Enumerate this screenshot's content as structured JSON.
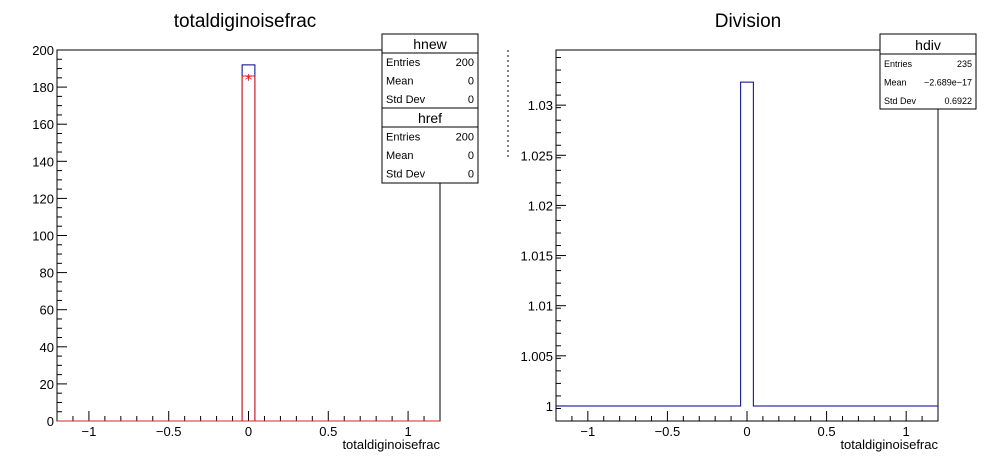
{
  "chart_data": [
    {
      "type": "bar",
      "title": "totaldiginoisefrac",
      "xlabel": "totaldiginoisefrac",
      "xlim": [
        -1.2,
        1.2
      ],
      "ylim": [
        0,
        200
      ],
      "x_ticks": [
        -1,
        -0.5,
        0,
        0.5,
        1
      ],
      "x_tick_labels": [
        "−1",
        "−0.5",
        "0",
        "0.5",
        "1"
      ],
      "y_ticks": [
        0,
        20,
        40,
        60,
        80,
        100,
        120,
        140,
        160,
        180,
        200
      ],
      "y_tick_labels": [
        "0",
        "20",
        "40",
        "60",
        "80",
        "100",
        "120",
        "140",
        "160",
        "180",
        "200"
      ],
      "series": [
        {
          "name": "hnew",
          "color": "#00008b",
          "bins": [
            {
              "x0": -0.04,
              "x1": 0.04,
              "value": 192
            }
          ],
          "marker": null
        },
        {
          "name": "href",
          "color": "#e02020",
          "bins": [
            {
              "x0": -0.04,
              "x1": 0.04,
              "value": 186
            }
          ],
          "marker": {
            "x": 0,
            "y": 186,
            "symbol": "*"
          }
        }
      ],
      "stats": [
        {
          "title": "hnew",
          "rows": [
            {
              "label": "Entries",
              "value": "200"
            },
            {
              "label": "Mean",
              "value": "0"
            },
            {
              "label": "Std Dev",
              "value": "0"
            }
          ]
        },
        {
          "title": "href",
          "rows": [
            {
              "label": "Entries",
              "value": "200"
            },
            {
              "label": "Mean",
              "value": "0"
            },
            {
              "label": "Std Dev",
              "value": "0"
            }
          ]
        }
      ]
    },
    {
      "type": "bar",
      "title": "Division",
      "xlabel": "totaldiginoisefrac",
      "xlim": [
        -1.2,
        1.2
      ],
      "ylim": [
        0.9985,
        1.0355
      ],
      "x_ticks": [
        -1,
        -0.5,
        0,
        0.5,
        1
      ],
      "x_tick_labels": [
        "−1",
        "−0.5",
        "0",
        "0.5",
        "1"
      ],
      "y_ticks": [
        1,
        1.005,
        1.01,
        1.015,
        1.02,
        1.025,
        1.03
      ],
      "y_tick_labels": [
        "1",
        "1.005",
        "1.01",
        "1.015",
        "1.02",
        "1.025",
        "1.03"
      ],
      "series": [
        {
          "name": "hdiv",
          "color": "#00008b",
          "baseline": 1,
          "bins": [
            {
              "x0": -1.2,
              "x1": -0.04,
              "value": 1
            },
            {
              "x0": -0.04,
              "x1": 0.04,
              "value": 1.0323
            },
            {
              "x0": 0.04,
              "x1": 1.2,
              "value": 1
            }
          ]
        }
      ],
      "stats": [
        {
          "title": "hdiv",
          "rows": [
            {
              "label": "Entries",
              "value": "235"
            },
            {
              "label": "Mean",
              "value": "−2.689e−17"
            },
            {
              "label": "Std Dev",
              "value": "0.6922"
            }
          ]
        }
      ]
    }
  ]
}
